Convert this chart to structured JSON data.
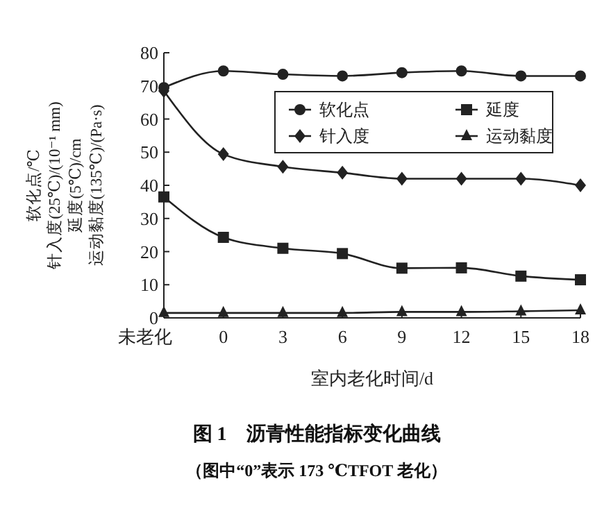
{
  "chart_data": {
    "type": "line",
    "title": "图 1　沥青性能指标变化曲线",
    "xlabel": "室内老化时间/d",
    "ylabel": "软化点/℃\n针入度(25℃)/(10⁻¹ mm)\n延度(5℃)/cm\n运动黏度(135℃)/(Pa·s)",
    "annotations": [
      "（图中“0”表示 173 ℃TFOT 老化）"
    ],
    "categories": [
      "未老化",
      "0",
      "3",
      "6",
      "9",
      "12",
      "15",
      "18"
    ],
    "series": [
      {
        "name": "软化点",
        "color": "#222222",
        "marker": "circle",
        "values": [
          69.5,
          74.5,
          73.5,
          73,
          74,
          74.5,
          73,
          73
        ]
      },
      {
        "name": "延度",
        "color": "#222222",
        "marker": "square",
        "values": [
          36.5,
          24.3,
          21,
          19.4,
          15,
          15.1,
          12.6,
          11.5
        ]
      },
      {
        "name": "针入度",
        "color": "#222222",
        "marker": "diamond",
        "values": [
          68.5,
          49.4,
          45.6,
          43.8,
          42,
          42,
          42,
          40
        ]
      },
      {
        "name": "运动黏度",
        "color": "#222222",
        "marker": "triangle",
        "values": [
          1.5,
          1.5,
          1.5,
          1.5,
          1.8,
          1.8,
          2,
          2.3
        ]
      }
    ],
    "ylim": [
      0,
      80
    ],
    "yticks": [
      0,
      10,
      20,
      30,
      40,
      50,
      60,
      70,
      80
    ],
    "grid": false,
    "legend": "top right",
    "line_style": "solid"
  }
}
